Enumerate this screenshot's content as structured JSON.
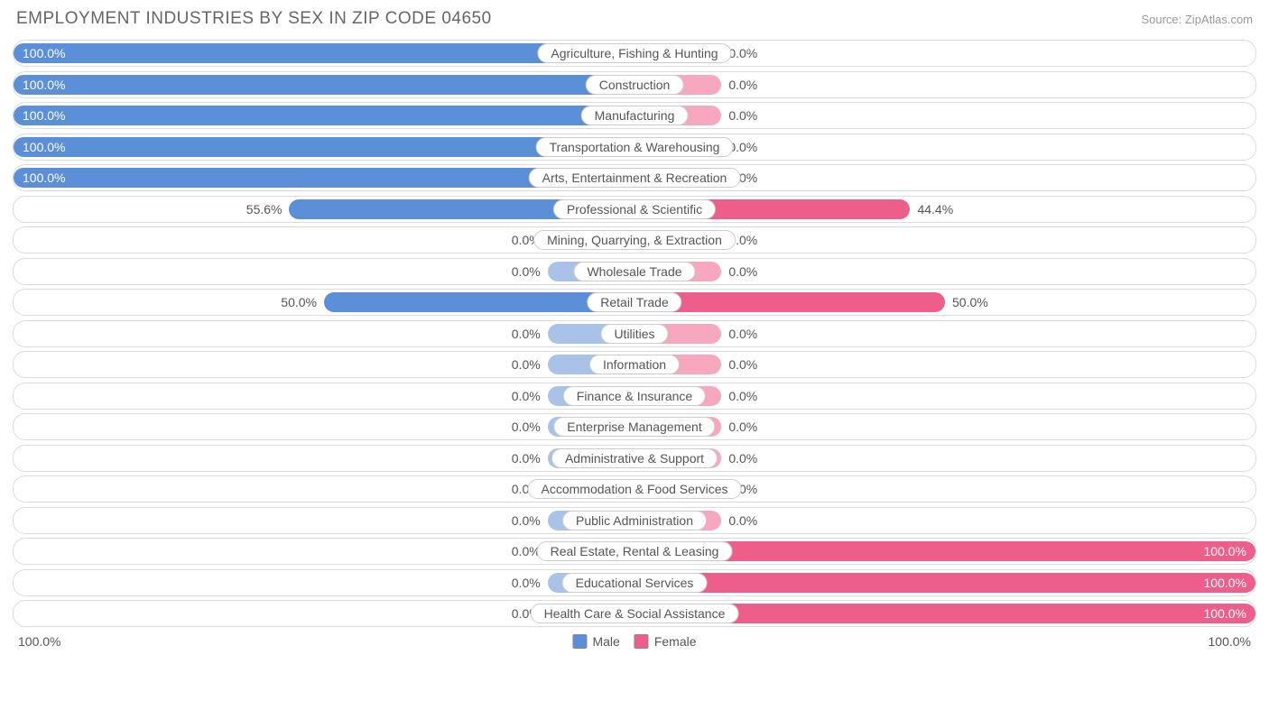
{
  "title": "EMPLOYMENT INDUSTRIES BY SEX IN ZIP CODE 04650",
  "source": "Source: ZipAtlas.com",
  "chart": {
    "type": "diverging-bar",
    "male_color": "#5b8fd8",
    "male_color_light": "#a9c3e8",
    "female_color": "#ee5e8a",
    "female_color_light": "#f7a8bf",
    "background_color": "#ffffff",
    "row_border_color": "#dcdcdc",
    "label_border_color": "#cccccc",
    "text_color": "#555555",
    "title_color": "#666666",
    "source_color": "#999999",
    "min_bar_pct": 14,
    "axis_left": "100.0%",
    "axis_right": "100.0%",
    "legend": [
      {
        "label": "Male",
        "color": "#5b8fd8"
      },
      {
        "label": "Female",
        "color": "#ee5e8a"
      }
    ],
    "rows": [
      {
        "category": "Agriculture, Fishing & Hunting",
        "male": 100.0,
        "female": 0.0
      },
      {
        "category": "Construction",
        "male": 100.0,
        "female": 0.0
      },
      {
        "category": "Manufacturing",
        "male": 100.0,
        "female": 0.0
      },
      {
        "category": "Transportation & Warehousing",
        "male": 100.0,
        "female": 0.0
      },
      {
        "category": "Arts, Entertainment & Recreation",
        "male": 100.0,
        "female": 0.0
      },
      {
        "category": "Professional & Scientific",
        "male": 55.6,
        "female": 44.4
      },
      {
        "category": "Mining, Quarrying, & Extraction",
        "male": 0.0,
        "female": 0.0
      },
      {
        "category": "Wholesale Trade",
        "male": 0.0,
        "female": 0.0
      },
      {
        "category": "Retail Trade",
        "male": 50.0,
        "female": 50.0
      },
      {
        "category": "Utilities",
        "male": 0.0,
        "female": 0.0
      },
      {
        "category": "Information",
        "male": 0.0,
        "female": 0.0
      },
      {
        "category": "Finance & Insurance",
        "male": 0.0,
        "female": 0.0
      },
      {
        "category": "Enterprise Management",
        "male": 0.0,
        "female": 0.0
      },
      {
        "category": "Administrative & Support",
        "male": 0.0,
        "female": 0.0
      },
      {
        "category": "Accommodation & Food Services",
        "male": 0.0,
        "female": 0.0
      },
      {
        "category": "Public Administration",
        "male": 0.0,
        "female": 0.0
      },
      {
        "category": "Real Estate, Rental & Leasing",
        "male": 0.0,
        "female": 100.0
      },
      {
        "category": "Educational Services",
        "male": 0.0,
        "female": 100.0
      },
      {
        "category": "Health Care & Social Assistance",
        "male": 0.0,
        "female": 100.0
      }
    ]
  }
}
